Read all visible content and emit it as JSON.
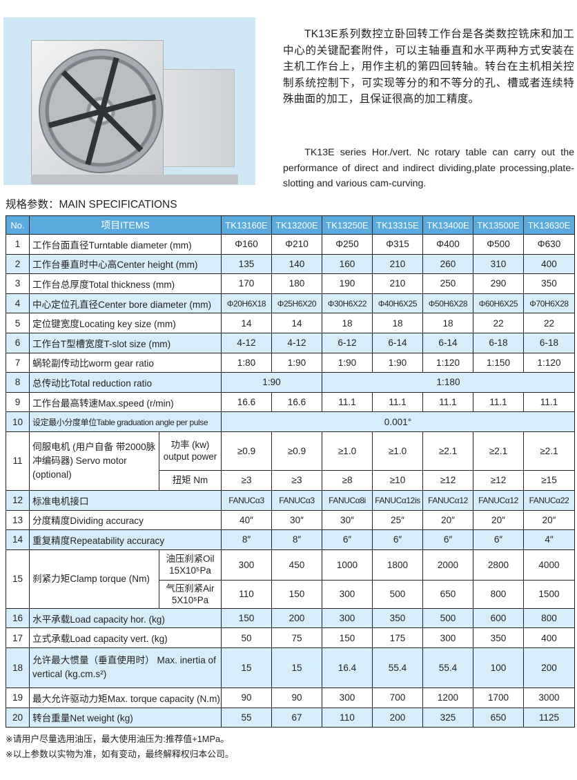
{
  "intro": {
    "chinese": "TK13E系列数控立卧回转工作台是各类数控铣床和加工中心的关键配套附件，可以主轴垂直和水平两种方式安装在主机工作台上，用作主机的第四回转轴。转台在主机相关控制系统控制下，可实现等分的和不等分的孔、槽或者连续特殊曲面的加工，且保证很高的加工精度。",
    "english": "TK13E series Hor./vert. Nc rotary table can carry out the performance of direct and indirect dividing,plate processing,plate-slotting and various cam-curving."
  },
  "colors": {
    "header": "#5aaadd",
    "row_alt": "#d5eefa",
    "photo_bg": "#cfe8f6"
  },
  "spec_title": "规格参数：MAIN SPECIFICATIONS",
  "table": {
    "header": {
      "no": "No.",
      "items": "项目ITEMS",
      "models": [
        "TK13160E",
        "TK13200E",
        "TK13250E",
        "TK13315E",
        "TK13400E",
        "TK13500E",
        "TK13630E"
      ]
    },
    "rows": [
      {
        "no": "1",
        "label": "工作台面直径Turntable diameter (mm)",
        "values": [
          "Φ160",
          "Φ210",
          "Φ250",
          "Φ315",
          "Φ400",
          "Φ500",
          "Φ630"
        ]
      },
      {
        "no": "2",
        "label": "工作台垂直时中心高Center height (mm)",
        "values": [
          "135",
          "140",
          "160",
          "210",
          "260",
          "310",
          "400"
        ]
      },
      {
        "no": "3",
        "label": "工作台总厚度Total thickness (mm)",
        "values": [
          "170",
          "180",
          "190",
          "210",
          "250",
          "290",
          "350"
        ]
      },
      {
        "no": "4",
        "label": "中心定位孔直径Center bore diameter (mm)",
        "values": [
          "Φ20H6X18",
          "Φ25H6X20",
          "Φ30H6X22",
          "Φ40H6X25",
          "Φ50H6X28",
          "Φ60H6X25",
          "Φ70H6X28"
        ],
        "small": true
      },
      {
        "no": "5",
        "label": "定位键宽度Locating key size (mm)",
        "values": [
          "14",
          "14",
          "18",
          "18",
          "18",
          "22",
          "22"
        ]
      },
      {
        "no": "6",
        "label": "工作台T型槽宽度T-slot size (mm)",
        "values": [
          "4-12",
          "4-12",
          "6-12",
          "6-14",
          "6-14",
          "6-18",
          "6-18"
        ]
      },
      {
        "no": "7",
        "label": "蜗轮副传动比worm gear ratio",
        "values": [
          "1:80",
          "1:90",
          "1:90",
          "1:90",
          "1:120",
          "1:150",
          "1:120"
        ]
      },
      {
        "no": "8",
        "label": "总传动比Total reduction ratio",
        "spans": [
          {
            "value": "1:90",
            "cols": 2
          },
          {
            "value": "1:180",
            "cols": 5
          }
        ]
      },
      {
        "no": "9",
        "label": "工作台最高转速Max.speed (r/min)",
        "values": [
          "16.6",
          "16.6",
          "11.1",
          "11.1",
          "11.1",
          "11.1",
          "11.1"
        ]
      },
      {
        "no": "10",
        "label": "设定最小分度单位Table graduation angle per pulse",
        "labelSmall": true,
        "spans": [
          {
            "value": "0.001°",
            "cols": 7
          }
        ]
      },
      {
        "no": "11",
        "label": "伺服电机 (用户自备 带2000脉冲编码器) Servo motor (optional)",
        "subrows": [
          {
            "label": "功率 (kw) output power",
            "values": [
              "≥0.9",
              "≥0.9",
              "≥1.0",
              "≥1.0",
              "≥2.1",
              "≥2.1",
              "≥2.1"
            ]
          },
          {
            "label": "扭矩 Nm",
            "values": [
              "≥3",
              "≥3",
              "≥8",
              "≥10",
              "≥12",
              "≥12",
              "≥15"
            ]
          }
        ]
      },
      {
        "no": "12",
        "label": "标准电机接口",
        "values": [
          "FANUCα3",
          "FANUCα3",
          "FANUCα8i",
          "FANUCα12is",
          "FANUCα12",
          "FANUCα12",
          "FANUCα22"
        ],
        "small": true
      },
      {
        "no": "13",
        "label": "分度精度Dividing accuracy",
        "values": [
          "40″",
          "30″",
          "30″",
          "25″",
          "20″",
          "20″",
          "20″"
        ]
      },
      {
        "no": "14",
        "label": "重复精度Repeatability accuracy",
        "values": [
          "8″",
          "8″",
          "6″",
          "6″",
          "6″",
          "6″",
          "4″"
        ]
      },
      {
        "no": "15",
        "label": "刹紧力矩Clamp torque (Nm)",
        "subrows": [
          {
            "label": "油压刹紧Oil 15X10⁵Pa",
            "values": [
              "300",
              "450",
              "1000",
              "1800",
              "2000",
              "2800",
              "4000"
            ]
          },
          {
            "label": "气压刹紧Air 5X10⁵Pa",
            "values": [
              "110",
              "150",
              "300",
              "500",
              "650",
              "800",
              "1500"
            ]
          }
        ]
      },
      {
        "no": "16",
        "label": "水平承载Load capacity hor. (kg)",
        "values": [
          "150",
          "200",
          "300",
          "350",
          "500",
          "600",
          "800"
        ]
      },
      {
        "no": "17",
        "label": "立式承载Load capacity vert. (kg)",
        "values": [
          "50",
          "75",
          "150",
          "175",
          "300",
          "350",
          "400"
        ]
      },
      {
        "no": "18",
        "label": "允许最大惯量（垂直使用时） Max. inertia of vertical (kg.cm.s²)",
        "values": [
          "15",
          "15",
          "16.4",
          "55.4",
          "55.4",
          "100",
          "200"
        ],
        "tall": true
      },
      {
        "no": "19",
        "label": "最大允许驱动力矩Max. torque capacity (N.m)",
        "values": [
          "90",
          "90",
          "300",
          "700",
          "1200",
          "1700",
          "3000"
        ]
      },
      {
        "no": "20",
        "label": "转台重量Net weight (kg)",
        "values": [
          "55",
          "67",
          "110",
          "200",
          "325",
          "650",
          "1125"
        ]
      }
    ]
  },
  "notes": [
    "※请用户尽量选用油压，最大使用油压为:推荐值+1MPa。",
    "※以上参数以实物为准，如有变动，最终解释权归本公司。"
  ]
}
